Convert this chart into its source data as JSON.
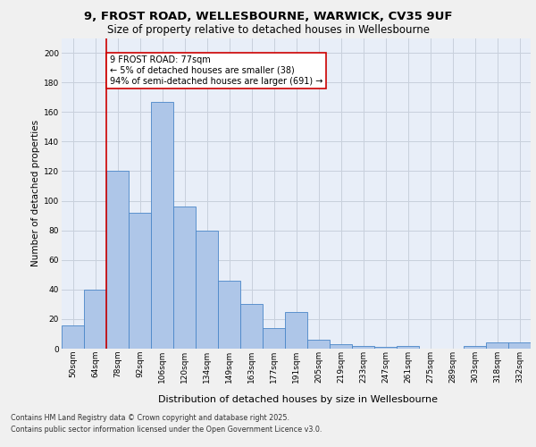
{
  "title_line1": "9, FROST ROAD, WELLESBOURNE, WARWICK, CV35 9UF",
  "title_line2": "Size of property relative to detached houses in Wellesbourne",
  "xlabel": "Distribution of detached houses by size in Wellesbourne",
  "ylabel": "Number of detached properties",
  "categories": [
    "50sqm",
    "64sqm",
    "78sqm",
    "92sqm",
    "106sqm",
    "120sqm",
    "134sqm",
    "149sqm",
    "163sqm",
    "177sqm",
    "191sqm",
    "205sqm",
    "219sqm",
    "233sqm",
    "247sqm",
    "261sqm",
    "275sqm",
    "289sqm",
    "303sqm",
    "318sqm",
    "332sqm"
  ],
  "values": [
    16,
    40,
    120,
    92,
    167,
    96,
    80,
    46,
    30,
    14,
    25,
    6,
    3,
    2,
    1,
    2,
    0,
    0,
    2,
    4,
    4
  ],
  "bar_color": "#aec6e8",
  "bar_edge_color": "#4a86c8",
  "annotation_text": "9 FROST ROAD: 77sqm\n← 5% of detached houses are smaller (38)\n94% of semi-detached houses are larger (691) →",
  "annotation_box_color": "#ffffff",
  "annotation_box_edge_color": "#cc0000",
  "vline_color": "#cc0000",
  "vline_x": 1.5,
  "ylim": [
    0,
    210
  ],
  "yticks": [
    0,
    20,
    40,
    60,
    80,
    100,
    120,
    140,
    160,
    180,
    200
  ],
  "grid_color": "#c8d0dc",
  "background_color": "#e8eef8",
  "fig_facecolor": "#f0f0f0",
  "footer_line1": "Contains HM Land Registry data © Crown copyright and database right 2025.",
  "footer_line2": "Contains public sector information licensed under the Open Government Licence v3.0.",
  "title_fontsize": 9.5,
  "subtitle_fontsize": 8.5,
  "xlabel_fontsize": 8,
  "ylabel_fontsize": 7.5,
  "tick_fontsize": 6.5,
  "annotation_fontsize": 7,
  "footer_fontsize": 5.8
}
